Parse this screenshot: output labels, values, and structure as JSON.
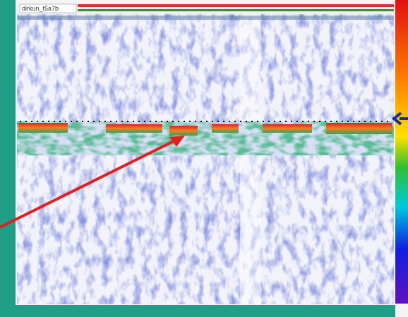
{
  "window": {
    "title": "dirkun_t5a7b"
  }
}
